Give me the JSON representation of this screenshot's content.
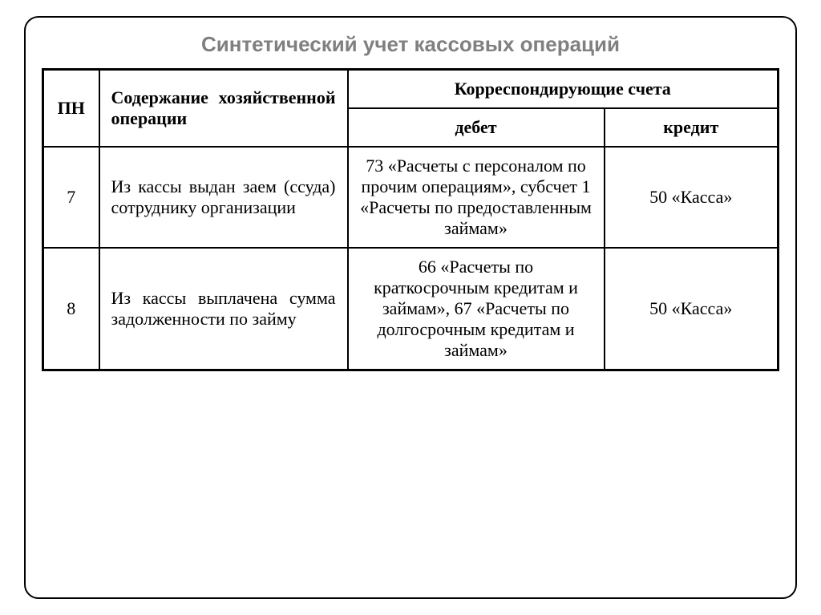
{
  "title": "Синтетический учет кассовых операций",
  "table": {
    "headers": {
      "pn": "ПН",
      "description": "Содержание хозяйственной операции",
      "accounts": "Корреспондирующие счета",
      "debit": "дебет",
      "credit": "кредит"
    },
    "rows": [
      {
        "pn": "7",
        "description": "Из кассы выдан заем (ссуда) сотруднику организации",
        "debit": "73 «Расчеты с персоналом по прочим операциям», субсчет 1 «Расчеты по предоставленным займам»",
        "credit": "50 «Касса»"
      },
      {
        "pn": "8",
        "description": "Из кассы выплачена сумма задолженности по займу",
        "debit": "66 «Расчеты по краткосрочным кредитам и займам», 67 «Расчеты по долгосрочным кредитам и займам»",
        "credit": "50 «Касса»"
      }
    ]
  },
  "styling": {
    "title_color": "#808080",
    "title_fontsize": 26,
    "border_color": "#000000",
    "background_color": "#ffffff",
    "cell_fontsize": 22,
    "frame_border_radius": 18,
    "outer_border_width": 3,
    "inner_border_width": 2
  }
}
